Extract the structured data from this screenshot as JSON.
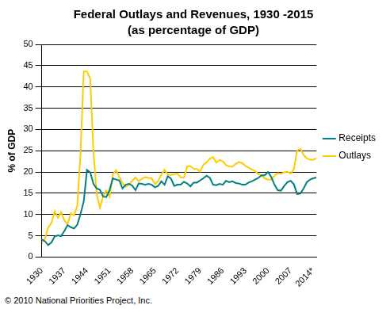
{
  "chart_data": {
    "type": "line",
    "title": "Federal Outlays and Revenues, 1930 -2015",
    "subtitle": "(as percentage of GDP)",
    "y_label": "% of GDP",
    "footer": "© 2010 National Priorities Project, Inc.",
    "x": [
      1930,
      1931,
      1932,
      1933,
      1934,
      1935,
      1936,
      1937,
      1938,
      1939,
      1940,
      1941,
      1942,
      1943,
      1944,
      1945,
      1946,
      1947,
      1948,
      1949,
      1950,
      1951,
      1952,
      1953,
      1954,
      1955,
      1956,
      1957,
      1958,
      1959,
      1960,
      1961,
      1962,
      1963,
      1964,
      1965,
      1966,
      1967,
      1968,
      1969,
      1970,
      1971,
      1972,
      1973,
      1974,
      1975,
      1976,
      1977,
      1978,
      1979,
      1980,
      1981,
      1982,
      1983,
      1984,
      1985,
      1986,
      1987,
      1988,
      1989,
      1990,
      1991,
      1992,
      1993,
      1994,
      1995,
      1996,
      1997,
      1998,
      1999,
      2000,
      2001,
      2002,
      2003,
      2004,
      2005,
      2006,
      2007,
      2008,
      2009,
      2010,
      2011,
      2012,
      2013,
      2014,
      2015
    ],
    "series": [
      {
        "name": "Receipts",
        "color": "#008080",
        "values": [
          4.1,
          3.7,
          2.8,
          3.4,
          4.8,
          5.1,
          4.9,
          6.1,
          7.5,
          7.0,
          6.7,
          7.6,
          10.1,
          13.1,
          20.5,
          19.9,
          17.2,
          16.1,
          15.8,
          14.2,
          14.1,
          15.8,
          18.5,
          18.2,
          18.0,
          16.1,
          17.0,
          17.2,
          16.8,
          15.7,
          17.3,
          17.2,
          17.0,
          17.2,
          17.0,
          16.4,
          16.7,
          17.8,
          17.0,
          19.0,
          18.4,
          16.7,
          17.0,
          17.0,
          17.7,
          17.3,
          16.6,
          17.5,
          17.5,
          18.0,
          18.5,
          19.1,
          18.6,
          17.0,
          16.9,
          17.2,
          17.0,
          17.9,
          17.6,
          17.8,
          17.4,
          17.3,
          17.0,
          17.0,
          17.5,
          17.8,
          18.2,
          18.6,
          19.2,
          19.2,
          20.0,
          18.8,
          17.0,
          15.7,
          15.6,
          16.7,
          17.6,
          17.9,
          17.1,
          14.8,
          14.9,
          16.1,
          17.6,
          18.2,
          18.5,
          18.7
        ]
      },
      {
        "name": "Outlays",
        "color": "#ffcc00",
        "values": [
          3.4,
          4.3,
          6.9,
          8.0,
          10.7,
          9.2,
          10.5,
          8.6,
          7.7,
          10.3,
          9.8,
          12.0,
          24.3,
          43.6,
          43.6,
          41.9,
          24.8,
          14.8,
          11.6,
          14.3,
          15.6,
          14.2,
          19.4,
          20.4,
          18.8,
          17.3,
          16.5,
          17.0,
          17.9,
          18.7,
          17.8,
          18.4,
          18.8,
          18.6,
          18.5,
          17.2,
          17.8,
          19.4,
          20.5,
          19.4,
          19.3,
          19.5,
          19.6,
          18.7,
          18.7,
          21.3,
          21.4,
          20.7,
          20.7,
          20.1,
          21.7,
          22.2,
          23.1,
          23.5,
          22.2,
          22.8,
          22.5,
          21.6,
          21.3,
          21.2,
          21.9,
          22.3,
          22.1,
          21.4,
          21.0,
          20.6,
          20.2,
          19.5,
          19.1,
          18.5,
          18.2,
          18.2,
          19.1,
          19.7,
          19.6,
          19.9,
          20.1,
          19.6,
          20.7,
          25.0,
          25.4,
          24.0,
          23.2,
          22.9,
          22.9,
          23.2
        ]
      }
    ],
    "xlim": [
      1930,
      2015
    ],
    "xticks": [
      1930,
      1937,
      1944,
      1951,
      1958,
      1965,
      1972,
      1979,
      1986,
      1993,
      2000,
      2007,
      {
        "value": 2014,
        "label": "2014*"
      }
    ],
    "ylim": [
      0,
      50
    ],
    "yticks": [
      0,
      5,
      10,
      15,
      20,
      25,
      30,
      35,
      40,
      45,
      50
    ],
    "grid": true,
    "legend": "right"
  }
}
